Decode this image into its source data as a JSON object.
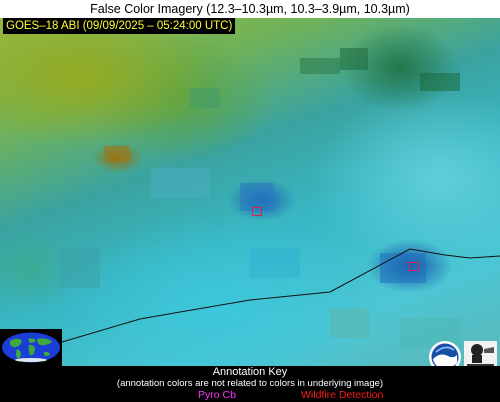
{
  "header": {
    "title": "False Color Imagery (12.3–10.3µm, 10.3–3.9µm, 10.3µm)"
  },
  "image": {
    "satellite_label": "GOES–18 ABI (09/09/2025 – 05:24:00 UTC)",
    "detections": [
      {
        "type": "Wildfire Detection"
      },
      {
        "type": "Wildfire Detection"
      }
    ]
  },
  "legend": {
    "title": "Annotation Key",
    "subtitle": "(annotation colors are not related to colors in underlying image)",
    "items": [
      {
        "label": "Pyro Cb",
        "color": "#ff33ff"
      },
      {
        "label": "Wildfire Detection",
        "color": "#ff1a1a"
      }
    ]
  },
  "logos": {
    "noaa": "noaa-logo",
    "cimss": "cimss-logo"
  },
  "colors": {
    "satellite_label_text": "#ffff33",
    "detection_box": "#e0204a",
    "boundary_line": "#111111"
  }
}
